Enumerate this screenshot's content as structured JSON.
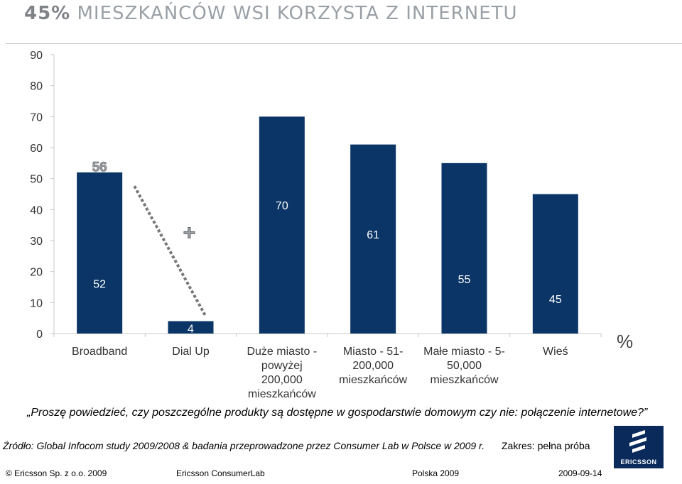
{
  "header": {
    "title_pct": "45%",
    "title_rest": "MIESZKAŃCÓW WSI KORZYSTA Z INTERNETU"
  },
  "chart_data": {
    "type": "bar",
    "categories": [
      [
        "Broadband"
      ],
      [
        "Dial Up"
      ],
      [
        "Duże miasto -",
        "powyżej",
        "200,000",
        "mieszkańców"
      ],
      [
        "Miasto - 51-",
        "200,000",
        "mieszkańców"
      ],
      [
        "Małe miasto - 5-",
        "50,000",
        "mieszkańców"
      ],
      [
        "Wieś"
      ]
    ],
    "values": [
      52,
      4,
      70,
      61,
      55,
      45
    ],
    "stack_total": {
      "category_index": 0,
      "total": 56,
      "plus_sign": "+"
    },
    "ylim": [
      0,
      90
    ],
    "yticks": [
      0,
      10,
      20,
      30,
      40,
      50,
      60,
      70,
      80,
      90
    ],
    "unit": "%",
    "bar_color": "#0a3566",
    "grid": false
  },
  "question": "„Proszę powiedzieć, czy poszczególne produkty są dostępne w gospodarstwie domowym czy nie: połączenie internetowe?”",
  "source": "Źródło: Global Infocom study 2009/2008 & badania przeprowadzone przez Consumer Lab w Polsce w 2009 r.",
  "scope": "Zakres: pełna próba",
  "logo": {
    "text": "ERICSSON"
  },
  "footer": {
    "copyright": "© Ericsson Sp. z o.o. 2009",
    "unit": "Ericsson ConsumerLab",
    "country": "Polska 2009",
    "date": "2009-09-14"
  }
}
